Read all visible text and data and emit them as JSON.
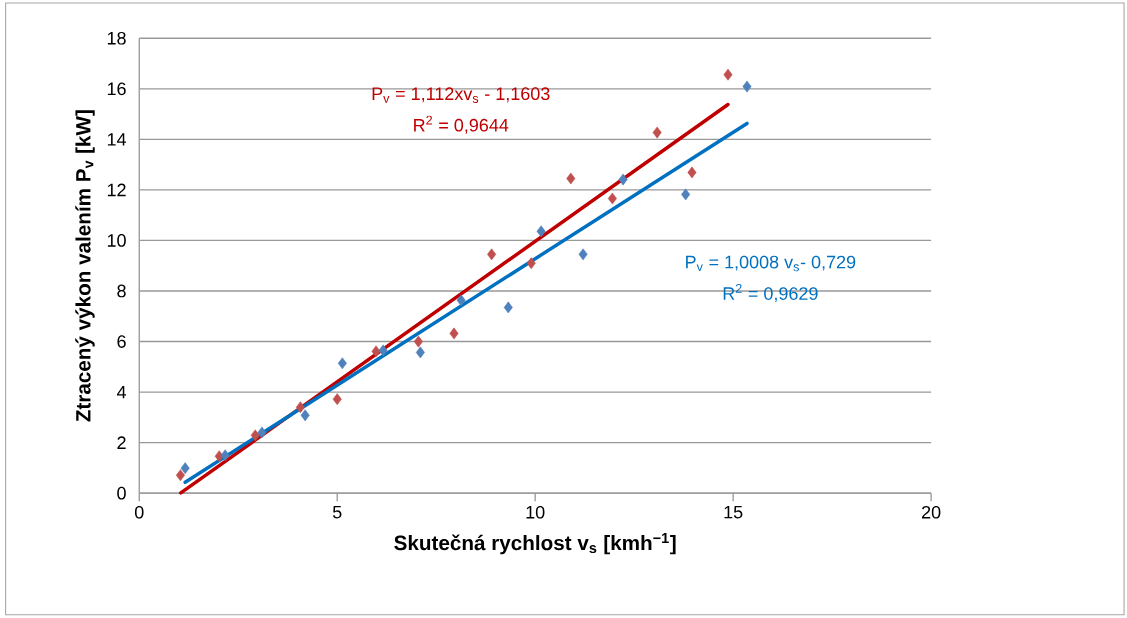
{
  "chart_data": {
    "type": "scatter",
    "xlabel": "Skutečná rychlost v$_{s}$ [kmh$^{−1}$]",
    "ylabel": "Ztracený výkon valením P$_{v}$ [kW]",
    "xlim": [
      0,
      20
    ],
    "ylim": [
      0,
      18
    ],
    "xticks": [
      0,
      5,
      10,
      15,
      20
    ],
    "yticks": [
      0,
      2,
      4,
      6,
      8,
      10,
      12,
      14,
      16,
      18
    ],
    "grid": "y",
    "series": [
      {
        "marker": "diamond",
        "color": "#c0504d",
        "x": [
          1.04,
          2.02,
          2.93,
          4.07,
          5.0,
          5.98,
          7.05,
          7.95,
          8.9,
          9.9,
          10.9,
          11.95,
          13.08,
          13.96,
          14.87
        ],
        "values": [
          0.71,
          1.46,
          2.29,
          3.4,
          3.72,
          5.61,
          6.0,
          6.32,
          9.45,
          9.1,
          12.45,
          11.66,
          14.27,
          12.69,
          16.56
        ]
      },
      {
        "marker": "diamond",
        "color": "#4f81bd",
        "x": [
          1.16,
          2.17,
          3.1,
          4.19,
          5.13,
          6.16,
          7.1,
          8.13,
          9.32,
          10.15,
          11.21,
          12.22,
          13.8,
          15.35
        ],
        "values": [
          0.99,
          1.5,
          2.4,
          3.08,
          5.14,
          5.65,
          5.57,
          7.63,
          7.35,
          10.36,
          9.45,
          12.41,
          11.82,
          16.09
        ]
      },
      {
        "type": "line",
        "marker": "none",
        "color": "#c00000",
        "x": [
          1.05,
          14.87
        ],
        "values": [
          0.01,
          15.38
        ]
      },
      {
        "type": "line",
        "marker": "none",
        "color": "#0070c0",
        "x": [
          1.16,
          15.35
        ],
        "values": [
          0.43,
          14.63
        ]
      }
    ],
    "annotations": [
      "P$_{v}$  = 1,112xv$_{s}$ - 1,1603",
      "R$^{2}$ = 0,9644",
      "P$_{v}$ = 1,0008 v$_{s}$- 0,729",
      "R$^{2}$ = 0,9629"
    ]
  }
}
